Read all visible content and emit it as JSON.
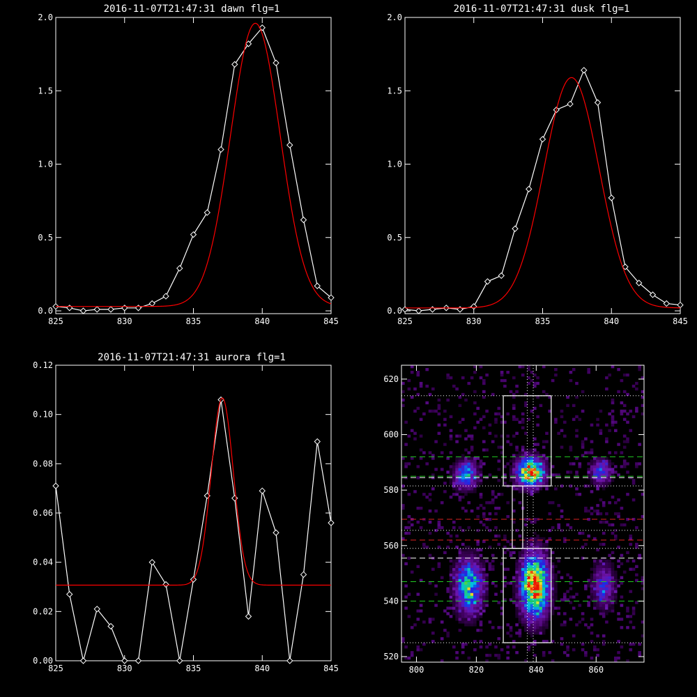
{
  "chart_data": [
    {
      "type": "line",
      "title": "2016-11-07T21:47:31 dawn flg=1",
      "xlim": [
        825,
        845
      ],
      "ylim": [
        0,
        2.0
      ],
      "xticks": [
        825,
        830,
        835,
        840,
        845
      ],
      "yticks": [
        0.0,
        0.5,
        1.0,
        1.5,
        2.0
      ],
      "ytick_labels": [
        "0.0",
        "0.5",
        "1.0",
        "1.5",
        "2.0"
      ],
      "series": [
        {
          "role": "data",
          "color": "#ffffff",
          "marker": "diamond",
          "x": [
            825,
            826,
            827,
            828,
            829,
            830,
            831,
            832,
            833,
            834,
            835,
            836,
            837,
            838,
            839,
            840,
            841,
            842,
            843,
            844,
            845
          ],
          "y": [
            0.03,
            0.02,
            0.0,
            0.01,
            0.01,
            0.02,
            0.02,
            0.05,
            0.1,
            0.29,
            0.52,
            0.67,
            1.1,
            1.68,
            1.82,
            1.93,
            1.69,
            1.13,
            0.62,
            0.17,
            0.09
          ]
        },
        {
          "role": "fit",
          "color": "#ff0000",
          "kind": "gaussian",
          "amplitude": 1.93,
          "center": 839.5,
          "sigma": 1.8,
          "offset": 0.03
        }
      ]
    },
    {
      "type": "line",
      "title": "2016-11-07T21:47:31 dusk flg=1",
      "xlim": [
        825,
        845
      ],
      "ylim": [
        0,
        2.0
      ],
      "xticks": [
        825,
        830,
        835,
        840,
        845
      ],
      "yticks": [
        0.0,
        0.5,
        1.0,
        1.5,
        2.0
      ],
      "ytick_labels": [
        "0.0",
        "0.5",
        "1.0",
        "1.5",
        "2.0"
      ],
      "series": [
        {
          "role": "data",
          "color": "#ffffff",
          "marker": "diamond",
          "x": [
            825,
            826,
            827,
            828,
            829,
            830,
            831,
            832,
            833,
            834,
            835,
            836,
            837,
            838,
            839,
            840,
            841,
            842,
            843,
            844,
            845
          ],
          "y": [
            0.01,
            0.0,
            0.01,
            0.02,
            0.01,
            0.03,
            0.2,
            0.24,
            0.56,
            0.83,
            1.17,
            1.37,
            1.41,
            1.64,
            1.42,
            0.77,
            0.3,
            0.19,
            0.11,
            0.05,
            0.04
          ]
        },
        {
          "role": "fit",
          "color": "#ff0000",
          "kind": "gaussian",
          "amplitude": 1.57,
          "center": 837.1,
          "sigma": 2.0,
          "offset": 0.02
        }
      ]
    },
    {
      "type": "line",
      "title": "2016-11-07T21:47:31 aurora flg=1",
      "xlim": [
        825,
        845
      ],
      "ylim": [
        0,
        0.12
      ],
      "xticks": [
        825,
        830,
        835,
        840,
        845
      ],
      "yticks": [
        0.0,
        0.02,
        0.04,
        0.06,
        0.08,
        0.1,
        0.12
      ],
      "ytick_labels": [
        "0.00",
        "0.02",
        "0.04",
        "0.06",
        "0.08",
        "0.10",
        "0.12"
      ],
      "series": [
        {
          "role": "data",
          "color": "#ffffff",
          "marker": "diamond",
          "x": [
            825,
            826,
            827,
            828,
            829,
            830,
            831,
            832,
            833,
            834,
            835,
            836,
            837,
            838,
            839,
            840,
            841,
            842,
            843,
            844,
            845
          ],
          "y": [
            0.071,
            0.027,
            0.0,
            0.021,
            0.014,
            0.0,
            0.0,
            0.04,
            0.031,
            0.0,
            0.033,
            0.067,
            0.106,
            0.066,
            0.018,
            0.069,
            0.052,
            0.0,
            0.035,
            0.089,
            0.056
          ]
        },
        {
          "role": "fit",
          "color": "#ff0000",
          "kind": "gaussian",
          "amplitude": 0.076,
          "center": 837.1,
          "sigma": 0.8,
          "offset": 0.0307
        }
      ]
    },
    {
      "type": "heatmap",
      "title": "",
      "xlim": [
        795,
        876
      ],
      "ylim": [
        518,
        625
      ],
      "xticks": [
        800,
        820,
        840,
        860
      ],
      "yticks": [
        520,
        540,
        560,
        580,
        600,
        620
      ],
      "blobs": [
        {
          "cx": 816,
          "cy": 585,
          "sx": 2.5,
          "sy": 3.2,
          "peak": 0.55
        },
        {
          "cx": 837.5,
          "cy": 586,
          "sx": 3.0,
          "sy": 3.4,
          "peak": 0.95
        },
        {
          "cx": 861,
          "cy": 586,
          "sx": 2.2,
          "sy": 3.0,
          "peak": 0.4
        },
        {
          "cx": 817,
          "cy": 545,
          "sx": 3.0,
          "sy": 6.5,
          "peak": 0.6
        },
        {
          "cx": 839,
          "cy": 545,
          "sx": 3.0,
          "sy": 7.5,
          "peak": 1.0
        },
        {
          "cx": 862,
          "cy": 545,
          "sx": 2.5,
          "sy": 5.0,
          "peak": 0.35
        }
      ],
      "boxes": [
        {
          "x0": 829,
          "x1": 845,
          "y0": 581.5,
          "y1": 614
        },
        {
          "x0": 829,
          "x1": 845,
          "y0": 525,
          "y1": 559
        }
      ],
      "connector": {
        "x0": 832,
        "x1": 835.5,
        "y0": 559,
        "y1": 581.5
      },
      "hlines": [
        {
          "y": 614,
          "color": "#ffffff",
          "style": "dotted"
        },
        {
          "y": 592,
          "color": "#22cc22",
          "style": "dashed"
        },
        {
          "y": 585,
          "color": "#22cc22",
          "style": "dashed"
        },
        {
          "y": 584.5,
          "color": "#ffffff",
          "style": "dashed"
        },
        {
          "y": 581.5,
          "color": "#ffffff",
          "style": "dotted"
        },
        {
          "y": 569.5,
          "color": "#dd2222",
          "style": "dashed"
        },
        {
          "y": 565.5,
          "color": "#ffffff",
          "style": "dotted"
        },
        {
          "y": 562,
          "color": "#dd2222",
          "style": "dashed"
        },
        {
          "y": 559,
          "color": "#ffffff",
          "style": "dotted"
        },
        {
          "y": 555.5,
          "color": "#ffffff",
          "style": "dashed"
        },
        {
          "y": 547,
          "color": "#22cc22",
          "style": "dashed"
        },
        {
          "y": 540,
          "color": "#22cc22",
          "style": "dashed"
        },
        {
          "y": 525,
          "color": "#ffffff",
          "style": "dotted"
        }
      ],
      "vlines": [
        {
          "x": 837,
          "color": "#ffffff",
          "style": "dotted"
        },
        {
          "x": 839,
          "color": "#ffffff",
          "style": "dotted"
        }
      ]
    }
  ]
}
